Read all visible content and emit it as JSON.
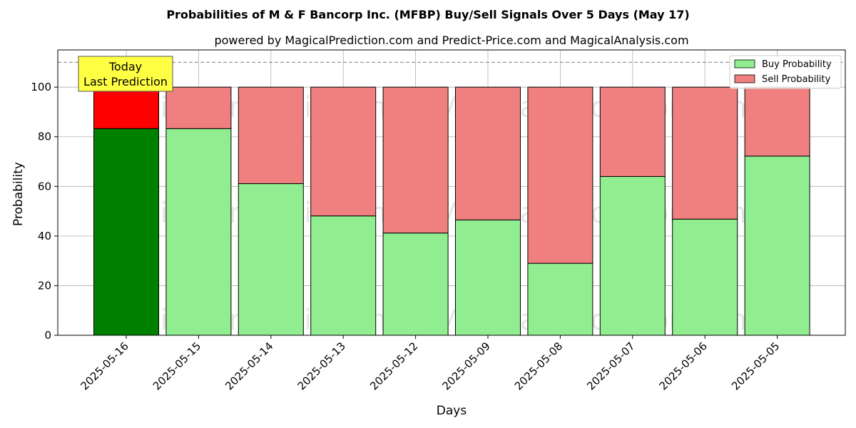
{
  "chart_data": {
    "type": "bar",
    "title": "Probabilities of M & F Bancorp Inc. (MFBP) Buy/Sell Signals Over 5 Days (May 17)",
    "subtitle": "powered by MagicalPrediction.com and Predict-Price.com and MagicalAnalysis.com",
    "xlabel": "Days",
    "ylabel": "Probability",
    "ylim": [
      0,
      115
    ],
    "yticks": [
      0,
      20,
      40,
      60,
      80,
      100
    ],
    "grid": true,
    "stacked": true,
    "categories": [
      "2025-05-16",
      "2025-05-15",
      "2025-05-14",
      "2025-05-13",
      "2025-05-12",
      "2025-05-09",
      "2025-05-08",
      "2025-05-07",
      "2025-05-06",
      "2025-05-05"
    ],
    "series": [
      {
        "name": "Buy Probability",
        "color": "#90ee90",
        "highlight_color": "#008000",
        "values": [
          83.3,
          83.3,
          61.1,
          48.1,
          41.2,
          46.5,
          29.0,
          64.0,
          46.8,
          72.2
        ]
      },
      {
        "name": "Sell Probability",
        "color": "#f08080",
        "highlight_color": "#ff0000",
        "values": [
          16.7,
          16.7,
          38.9,
          51.9,
          58.8,
          53.5,
          71.0,
          36.0,
          53.2,
          27.8
        ]
      }
    ],
    "reference_line": {
      "y": 110,
      "style": "dashed",
      "color": "#808080"
    },
    "annotation": {
      "lines": [
        "Today",
        "Last Prediction"
      ],
      "category": "2025-05-16",
      "background": "#ffff44"
    },
    "legend": {
      "position": "top-right"
    },
    "watermarks": [
      "MagicalAnalysis.com",
      "MagicalPrediction.com"
    ]
  }
}
